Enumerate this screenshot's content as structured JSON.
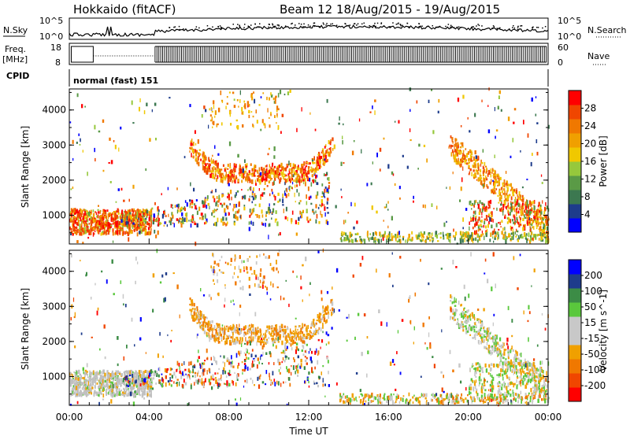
{
  "header": {
    "station": "Hokkaido (fitACF)",
    "beam_range": "Beam 12  18/Aug/2015 - 19/Aug/2015"
  },
  "strips": {
    "nsky_label": "N.Sky",
    "nsky_top": "10^5",
    "nsky_bottom": "10^0",
    "nsearch_label": "N.Search",
    "nsearch_top": "10^5",
    "nsearch_bottom": "10^0",
    "freq_label_1": "Freq.",
    "freq_label_2": "[MHz]",
    "freq_top": "18",
    "freq_bottom": "8",
    "nave_label": "Nave",
    "nave_top": "60",
    "nave_bottom": "0",
    "cpid_label": "CPID",
    "cpid_value": "normal (fast) 151"
  },
  "colors": {
    "power": [
      "#0000ff",
      "#1e3c8c",
      "#3c7850",
      "#5a9a46",
      "#96c83c",
      "#f0c800",
      "#f0a000",
      "#f07800",
      "#f04600",
      "#ff0000"
    ],
    "velocity": [
      "#ff0000",
      "#f04600",
      "#f07800",
      "#f0a000",
      "#c8c8c8",
      "#c8c8c8",
      "#5ac83c",
      "#3c8c46",
      "#1e3c8c",
      "#0000ff"
    ]
  },
  "chart_data": [
    {
      "type": "heatmap",
      "name": "power",
      "xlabel": "",
      "ylabel": "Slant Range [km]",
      "xlim": [
        "00:00",
        "24:00"
      ],
      "ylim": [
        180,
        4600
      ],
      "yticks": [
        "1000",
        "2000",
        "3000",
        "4000"
      ],
      "colorbar": {
        "label": "Power [dB]",
        "ticks": [
          "4",
          "8",
          "12",
          "16",
          "20",
          "24",
          "28"
        ],
        "range": [
          0,
          30
        ]
      },
      "features": [
        {
          "region": "low-range scatter",
          "time": [
            "00:00",
            "04:00"
          ],
          "range_km": [
            500,
            1100
          ],
          "power_db": [
            20,
            30
          ]
        },
        {
          "region": "arc",
          "time": [
            "06:00",
            "13:00"
          ],
          "range_km": [
            1600,
            3300
          ],
          "power_db": [
            14,
            26
          ]
        },
        {
          "region": "arc",
          "time": [
            "19:00",
            "24:00"
          ],
          "range_km": [
            600,
            3000
          ],
          "power_db": [
            10,
            24
          ]
        },
        {
          "region": "ground scatter",
          "time": [
            "14:00",
            "24:00"
          ],
          "range_km": [
            250,
            450
          ],
          "power_db": [
            8,
            18
          ]
        }
      ]
    },
    {
      "type": "heatmap",
      "name": "velocity",
      "xlabel": "Time UT",
      "ylabel": "Slant Range [km]",
      "xlim": [
        "00:00",
        "24:00"
      ],
      "ylim": [
        180,
        4600
      ],
      "xticks": [
        "00:00",
        "04:00",
        "08:00",
        "12:00",
        "16:00",
        "20:00",
        "00:00"
      ],
      "yticks": [
        "1000",
        "2000",
        "3000",
        "4000"
      ],
      "colorbar": {
        "label": "Velocity [m s^-1]",
        "ticks": [
          "-200",
          "-100",
          "-50",
          "-15",
          "15",
          "50",
          "100",
          "200"
        ],
        "range": [
          -250,
          250
        ]
      },
      "features": [
        {
          "region": "low-range scatter",
          "time": [
            "00:00",
            "04:00"
          ],
          "range_km": [
            500,
            1100
          ],
          "velocity_ms": [
            -15,
            15
          ]
        },
        {
          "region": "arc",
          "time": [
            "06:00",
            "13:00"
          ],
          "range_km": [
            1600,
            3300
          ],
          "velocity_ms": [
            -80,
            15
          ]
        },
        {
          "region": "arc",
          "time": [
            "19:00",
            "24:00"
          ],
          "range_km": [
            600,
            3000
          ],
          "velocity_ms": [
            -30,
            15
          ]
        }
      ]
    }
  ]
}
